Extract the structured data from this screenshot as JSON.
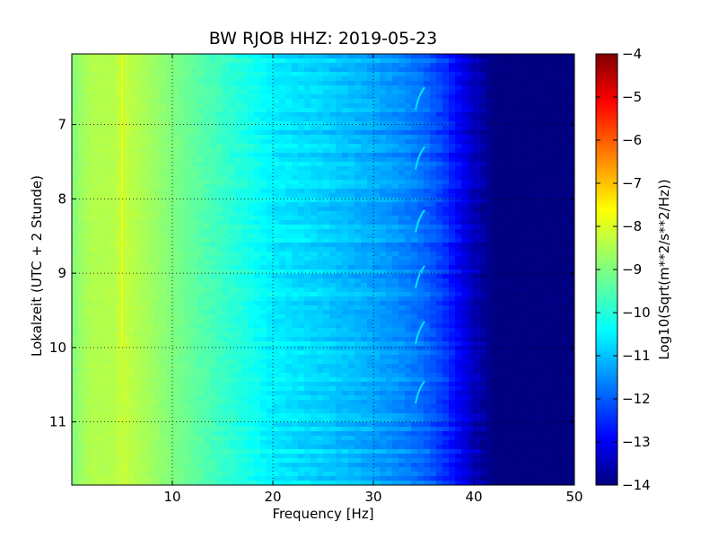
{
  "chart_data": {
    "type": "heatmap",
    "title": "BW RJOB HHZ: 2019-05-23",
    "xlabel": "Frequency [Hz]",
    "ylabel": "Lokalzeit (UTC + 2 Stunde)",
    "xlim": [
      0,
      50
    ],
    "ylim": [
      11.85,
      6.05
    ],
    "y_axis_inverted": true,
    "grid": true,
    "x_ticks": [
      10,
      20,
      30,
      40,
      50
    ],
    "y_ticks": [
      7,
      8,
      9,
      10,
      11
    ],
    "colorbar": {
      "label": "Log10(Sqrt(m**2/s**2/Hz))",
      "range": [
        -14,
        -4
      ],
      "ticks": [
        -4,
        -5,
        -6,
        -7,
        -8,
        -9,
        -10,
        -11,
        -12,
        -13,
        -14
      ],
      "tick_labels": [
        "−4",
        "−5",
        "−6",
        "−7",
        "−8",
        "−9",
        "−10",
        "−11",
        "−12",
        "−13",
        "−14"
      ],
      "colormap": "jet"
    },
    "spectrum_profile": {
      "frequency_hz": [
        0,
        1,
        2,
        4,
        5,
        8,
        10,
        15,
        18,
        20,
        25,
        30,
        33,
        35,
        37,
        38,
        39,
        40,
        41,
        42,
        44,
        50
      ],
      "log10_amplitude": [
        -9.0,
        -8.7,
        -8.5,
        -8.5,
        -8.3,
        -8.7,
        -9.0,
        -9.7,
        -10.1,
        -10.4,
        -10.7,
        -11.1,
        -11.4,
        -11.7,
        -12.2,
        -12.6,
        -13.0,
        -13.4,
        -13.7,
        -14.0,
        -14.0,
        -14.0
      ]
    },
    "features": {
      "line_frequency_hz": 5,
      "line_time_range": [
        6.05,
        10.0
      ],
      "line_amplitude": -7.8,
      "burst_frequency_hz": 34.5,
      "burst_times": [
        6.55,
        7.35,
        8.2,
        8.95,
        9.7,
        10.5
      ],
      "burst_amplitude": -10.5
    },
    "colors": {
      "jet_stops": [
        "#00007f",
        "#0000ff",
        "#007fff",
        "#00ffff",
        "#7fff7f",
        "#ffff00",
        "#ff7f00",
        "#ff0000",
        "#7f0000"
      ]
    }
  }
}
